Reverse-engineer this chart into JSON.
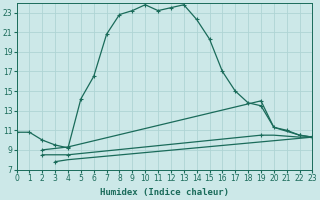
{
  "xlabel": "Humidex (Indice chaleur)",
  "xlim": [
    0,
    23
  ],
  "ylim": [
    7,
    24
  ],
  "xticks": [
    0,
    1,
    2,
    3,
    4,
    5,
    6,
    7,
    8,
    9,
    10,
    11,
    12,
    13,
    14,
    15,
    16,
    17,
    18,
    19,
    20,
    21,
    22,
    23
  ],
  "yticks": [
    7,
    9,
    11,
    13,
    15,
    17,
    19,
    21,
    23
  ],
  "bg_color": "#cce8e8",
  "line_color": "#1a6b5a",
  "grid_color": "#afd4d4",
  "line1_x": [
    0,
    1,
    2,
    3,
    4,
    5,
    6,
    7,
    8,
    9,
    10,
    11,
    12,
    13,
    14,
    15,
    16,
    17,
    18,
    19,
    20,
    21,
    22,
    23
  ],
  "line1_y": [
    10.8,
    10.8,
    10.0,
    9.5,
    9.2,
    14.2,
    16.5,
    20.8,
    22.8,
    23.2,
    23.8,
    23.2,
    23.5,
    23.8,
    22.3,
    20.3,
    17.0,
    15.0,
    13.8,
    13.5,
    11.3,
    11.0,
    10.5,
    10.3
  ],
  "line2_x": [
    2,
    4,
    19,
    20,
    22,
    23
  ],
  "line2_y": [
    9.0,
    9.3,
    14.0,
    11.3,
    10.5,
    10.3
  ],
  "line3_x": [
    2,
    4,
    19,
    20,
    22,
    23
  ],
  "line3_y": [
    8.5,
    8.5,
    10.5,
    10.5,
    10.3,
    10.3
  ],
  "line4_x": [
    3,
    4,
    23
  ],
  "line4_y": [
    7.8,
    8.0,
    10.3
  ],
  "marker_line2_x": [
    2,
    4,
    19,
    22,
    23
  ],
  "marker_line2_y": [
    9.0,
    9.3,
    14.0,
    10.5,
    10.3
  ],
  "marker_line3_x": [
    2,
    4,
    19,
    23
  ],
  "marker_line3_y": [
    8.5,
    8.5,
    10.5,
    10.3
  ],
  "marker_line4_x": [
    3,
    23
  ],
  "marker_line4_y": [
    7.8,
    10.3
  ]
}
